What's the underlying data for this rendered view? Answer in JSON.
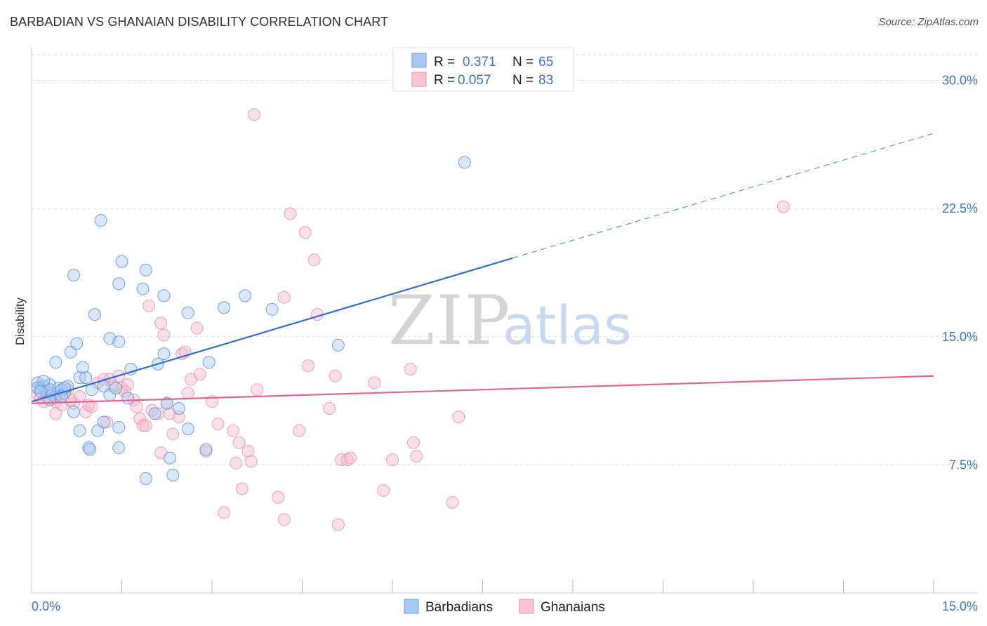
{
  "title": "BARBADIAN VS GHANAIAN DISABILITY CORRELATION CHART",
  "source": "Source: ZipAtlas.com",
  "watermark": {
    "zip": "ZIP",
    "atlas": "atlas"
  },
  "colors": {
    "barbadians_fill": "#a9c9f2",
    "barbadians_line": "#2d6fd0",
    "ghanaians_fill": "#f6b8cc",
    "ghanaians_line": "#e0668f",
    "axis_text": "#3b78c7",
    "grid": "#dddddd"
  },
  "legend": {
    "row1": {
      "r_label": "R =",
      "r_value": "0.371",
      "n_label": "N =",
      "n_value": "65"
    },
    "row2": {
      "r_label": "R =",
      "r_value": "0.057",
      "n_label": "N =",
      "n_value": "83"
    }
  },
  "chart_data": {
    "type": "scatter",
    "title": "BARBADIAN VS GHANAIAN DISABILITY CORRELATION CHART",
    "xlabel": "",
    "ylabel": "Disability",
    "xlim": [
      0,
      15
    ],
    "ylim": [
      0,
      31.5
    ],
    "x_tick_labels": [
      "0.0%",
      "15.0%"
    ],
    "y_ticks": [
      7.5,
      15.0,
      22.5,
      30.0
    ],
    "y_tick_labels": [
      "7.5%",
      "15.0%",
      "22.5%",
      "30.0%"
    ],
    "grid": true,
    "legend_position": "top-center",
    "series": [
      {
        "name": "Barbadians",
        "r": 0.371,
        "n": 65,
        "trend": {
          "x_start": 0.0,
          "y_start": 11.2,
          "x_solid_end": 8.0,
          "y_solid_end": 19.6,
          "x_end": 15.0,
          "y_end": 26.9
        },
        "points": [
          [
            0.1,
            12.3
          ],
          [
            0.15,
            12.0
          ],
          [
            0.2,
            12.1
          ],
          [
            0.25,
            11.8
          ],
          [
            0.3,
            12.2
          ],
          [
            0.35,
            11.6
          ],
          [
            0.4,
            11.5
          ],
          [
            0.45,
            12.0
          ],
          [
            0.5,
            11.9
          ],
          [
            0.55,
            11.7
          ],
          [
            0.6,
            12.1
          ],
          [
            0.2,
            12.4
          ],
          [
            0.3,
            11.9
          ],
          [
            0.1,
            12.0
          ],
          [
            0.15,
            11.8
          ],
          [
            0.4,
            13.5
          ],
          [
            0.65,
            14.1
          ],
          [
            0.75,
            14.6
          ],
          [
            0.85,
            13.2
          ],
          [
            0.8,
            12.6
          ],
          [
            0.7,
            10.6
          ],
          [
            0.8,
            9.5
          ],
          [
            0.95,
            8.5
          ],
          [
            0.97,
            8.4
          ],
          [
            0.7,
            18.6
          ],
          [
            1.15,
            21.8
          ],
          [
            1.05,
            16.3
          ],
          [
            1.3,
            14.9
          ],
          [
            1.45,
            14.7
          ],
          [
            1.5,
            19.4
          ],
          [
            1.45,
            18.1
          ],
          [
            1.9,
            18.9
          ],
          [
            1.85,
            17.8
          ],
          [
            2.2,
            17.4
          ],
          [
            2.6,
            16.4
          ],
          [
            3.2,
            16.7
          ],
          [
            3.55,
            17.4
          ],
          [
            4.0,
            16.6
          ],
          [
            5.1,
            14.5
          ],
          [
            7.2,
            25.2
          ],
          [
            1.2,
            12.1
          ],
          [
            1.3,
            11.6
          ],
          [
            1.4,
            12.0
          ],
          [
            1.65,
            13.1
          ],
          [
            1.6,
            11.4
          ],
          [
            2.1,
            13.4
          ],
          [
            2.2,
            14.0
          ],
          [
            2.05,
            10.5
          ],
          [
            2.3,
            7.9
          ],
          [
            2.35,
            6.9
          ],
          [
            2.45,
            10.8
          ],
          [
            2.6,
            9.6
          ],
          [
            2.9,
            8.4
          ],
          [
            2.95,
            13.5
          ],
          [
            1.9,
            6.7
          ],
          [
            1.45,
            8.5
          ],
          [
            1.45,
            9.7
          ],
          [
            1.1,
            9.5
          ],
          [
            1.2,
            10.0
          ],
          [
            0.9,
            12.6
          ],
          [
            1.0,
            11.9
          ],
          [
            0.55,
            12.0
          ],
          [
            0.5,
            11.5
          ],
          [
            0.3,
            11.3
          ],
          [
            2.25,
            11.1
          ]
        ]
      },
      {
        "name": "Ghanaians",
        "r": 0.057,
        "n": 83,
        "trend": {
          "x_start": 0.0,
          "y_start": 11.1,
          "x_end": 15.0,
          "y_end": 12.7
        },
        "points": [
          [
            0.1,
            11.6
          ],
          [
            0.15,
            11.4
          ],
          [
            0.2,
            11.2
          ],
          [
            0.25,
            11.5
          ],
          [
            0.3,
            11.3
          ],
          [
            0.35,
            11.7
          ],
          [
            0.4,
            11.2
          ],
          [
            0.45,
            11.5
          ],
          [
            0.5,
            11.0
          ],
          [
            0.6,
            11.9
          ],
          [
            0.7,
            11.1
          ],
          [
            0.8,
            11.5
          ],
          [
            0.9,
            10.6
          ],
          [
            0.95,
            11.0
          ],
          [
            1.0,
            10.9
          ],
          [
            0.4,
            10.5
          ],
          [
            1.1,
            12.3
          ],
          [
            1.2,
            12.5
          ],
          [
            1.3,
            12.5
          ],
          [
            1.35,
            12.1
          ],
          [
            1.45,
            12.7
          ],
          [
            1.5,
            12.0
          ],
          [
            1.55,
            11.8
          ],
          [
            1.6,
            12.2
          ],
          [
            1.7,
            11.3
          ],
          [
            1.75,
            10.9
          ],
          [
            1.8,
            10.2
          ],
          [
            1.85,
            9.8
          ],
          [
            1.9,
            9.8
          ],
          [
            2.0,
            10.7
          ],
          [
            2.1,
            10.5
          ],
          [
            2.15,
            8.2
          ],
          [
            2.25,
            11.1
          ],
          [
            2.3,
            10.5
          ],
          [
            2.35,
            9.3
          ],
          [
            2.45,
            10.3
          ],
          [
            2.2,
            15.1
          ],
          [
            2.15,
            15.8
          ],
          [
            1.95,
            16.8
          ],
          [
            2.5,
            14.0
          ],
          [
            2.6,
            11.7
          ],
          [
            2.65,
            12.5
          ],
          [
            2.75,
            15.5
          ],
          [
            2.8,
            12.8
          ],
          [
            2.9,
            8.3
          ],
          [
            3.0,
            11.2
          ],
          [
            3.1,
            9.9
          ],
          [
            3.2,
            4.7
          ],
          [
            3.35,
            9.5
          ],
          [
            3.4,
            7.6
          ],
          [
            3.45,
            8.8
          ],
          [
            3.5,
            6.1
          ],
          [
            3.6,
            8.3
          ],
          [
            3.65,
            7.7
          ],
          [
            3.75,
            11.9
          ],
          [
            3.7,
            28.0
          ],
          [
            4.1,
            5.6
          ],
          [
            4.2,
            4.3
          ],
          [
            4.2,
            17.3
          ],
          [
            4.3,
            22.2
          ],
          [
            4.45,
            9.5
          ],
          [
            4.6,
            13.3
          ],
          [
            4.55,
            21.1
          ],
          [
            4.7,
            19.5
          ],
          [
            4.75,
            16.3
          ],
          [
            4.95,
            10.8
          ],
          [
            5.05,
            12.7
          ],
          [
            5.1,
            4.0
          ],
          [
            5.15,
            7.8
          ],
          [
            5.25,
            7.8
          ],
          [
            5.3,
            7.9
          ],
          [
            5.7,
            12.3
          ],
          [
            5.85,
            6.0
          ],
          [
            6.0,
            7.8
          ],
          [
            6.3,
            13.1
          ],
          [
            6.35,
            8.8
          ],
          [
            6.4,
            8.0
          ],
          [
            7.0,
            5.3
          ],
          [
            7.1,
            10.3
          ],
          [
            12.5,
            22.6
          ],
          [
            2.55,
            14.1
          ],
          [
            1.25,
            10.0
          ],
          [
            0.65,
            11.3
          ]
        ]
      }
    ]
  }
}
